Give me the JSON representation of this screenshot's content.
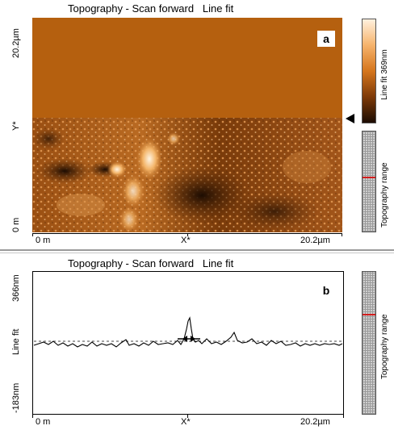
{
  "panel_a": {
    "title": "Topography - Scan forward   Line fit",
    "label": "a",
    "y_top": "20.2µm",
    "y_mid": "Y*",
    "y_bottom": "0 m",
    "x_left": "0 m",
    "x_mid": "X*",
    "x_right": "20.2µm",
    "colorbar_label": "Line fit 369nm",
    "range_label": "Topography range",
    "colors": {
      "dark": "#1c0c02",
      "mid": "#b5600f",
      "light": "#fff1de"
    }
  },
  "panel_b": {
    "title": "Topography - Scan forward   Line fit",
    "label": "b",
    "y_top": "366nm",
    "y_mid": "Line fit",
    "y_bottom": "-183nm",
    "x_left": "0 m",
    "x_mid": "X*",
    "x_right": "20.2µm",
    "range_label": "Topography range"
  }
}
